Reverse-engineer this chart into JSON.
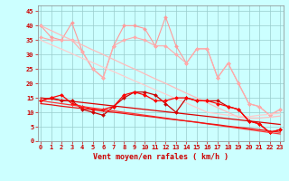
{
  "x": [
    0,
    1,
    2,
    3,
    4,
    5,
    6,
    7,
    8,
    9,
    10,
    11,
    12,
    13,
    14,
    15,
    16,
    17,
    18,
    19,
    20,
    21,
    22,
    23
  ],
  "series": [
    {
      "label": "pink_wiggly1",
      "color": "#ff9999",
      "lw": 0.8,
      "marker": "D",
      "markersize": 2.0,
      "y": [
        40,
        36,
        35,
        41,
        31,
        25,
        22,
        33,
        40,
        40,
        39,
        33,
        43,
        33,
        27,
        32,
        32,
        22,
        27,
        20,
        13,
        12,
        9,
        11
      ]
    },
    {
      "label": "pink_wiggly2",
      "color": "#ffaaaa",
      "lw": 0.8,
      "marker": "D",
      "markersize": 2.0,
      "y": [
        36,
        35,
        35,
        35,
        31,
        25,
        22,
        33,
        35,
        36,
        35,
        33,
        33,
        30,
        27,
        32,
        32,
        22,
        27,
        20,
        13,
        12,
        9,
        11
      ]
    },
    {
      "label": "pink_trend1",
      "color": "#ffbbbb",
      "lw": 0.9,
      "marker": null,
      "markersize": 0,
      "y": [
        40,
        38.3,
        36.6,
        35.0,
        33.3,
        31.6,
        30.0,
        28.3,
        26.6,
        25.0,
        23.3,
        21.6,
        20.0,
        18.3,
        16.6,
        15.0,
        13.3,
        11.6,
        10.0,
        8.3,
        8.0,
        8.0,
        8.3,
        8.7
      ]
    },
    {
      "label": "pink_trend2",
      "color": "#ffcccc",
      "lw": 0.9,
      "marker": null,
      "markersize": 0,
      "y": [
        35,
        33.4,
        31.9,
        30.3,
        28.7,
        27.2,
        25.6,
        24.1,
        22.5,
        20.9,
        19.4,
        17.8,
        16.3,
        14.7,
        13.2,
        11.6,
        10.0,
        9.5,
        9.0,
        8.7,
        8.5,
        9.0,
        9.3,
        9.7
      ]
    },
    {
      "label": "red_wiggly1",
      "color": "#cc0000",
      "lw": 0.9,
      "marker": "D",
      "markersize": 2.0,
      "y": [
        14,
        15,
        14,
        14,
        11,
        10,
        9,
        12,
        15,
        17,
        17,
        16,
        13,
        10,
        15,
        14,
        14,
        14,
        12,
        11,
        7,
        6,
        3,
        4
      ]
    },
    {
      "label": "red_wiggly2",
      "color": "#ff0000",
      "lw": 0.9,
      "marker": "D",
      "markersize": 2.0,
      "y": [
        14,
        15,
        16,
        13,
        12,
        11,
        11,
        12,
        16,
        17,
        16,
        14,
        14,
        15,
        15,
        14,
        14,
        13,
        12,
        11,
        7,
        6,
        3,
        4
      ]
    },
    {
      "label": "red_trend1",
      "color": "#dd0000",
      "lw": 0.9,
      "marker": null,
      "markersize": 0,
      "y": [
        15,
        14.6,
        14.2,
        13.8,
        13.4,
        13.0,
        12.6,
        12.2,
        11.8,
        11.4,
        11.0,
        10.6,
        10.2,
        9.8,
        9.4,
        9.0,
        8.6,
        8.2,
        7.8,
        7.4,
        7.0,
        6.6,
        6.2,
        5.8
      ]
    },
    {
      "label": "red_trend2",
      "color": "#ff3333",
      "lw": 0.9,
      "marker": null,
      "markersize": 0,
      "y": [
        14,
        13.5,
        13.0,
        12.5,
        12.0,
        11.5,
        11.0,
        10.5,
        10.0,
        9.5,
        9.0,
        8.5,
        8.0,
        7.5,
        7.0,
        6.5,
        6.0,
        5.5,
        5.0,
        4.5,
        4.0,
        3.5,
        3.0,
        2.5
      ]
    },
    {
      "label": "red_trend3",
      "color": "#ee1111",
      "lw": 0.9,
      "marker": null,
      "markersize": 0,
      "y": [
        13,
        12.6,
        12.1,
        11.7,
        11.3,
        10.9,
        10.4,
        10.0,
        9.6,
        9.1,
        8.7,
        8.3,
        7.8,
        7.4,
        7.0,
        6.6,
        6.1,
        5.7,
        5.2,
        4.8,
        4.4,
        4.0,
        3.5,
        3.1
      ]
    }
  ],
  "xlim": [
    -0.3,
    23.3
  ],
  "ylim": [
    0,
    47
  ],
  "yticks": [
    0,
    5,
    10,
    15,
    20,
    25,
    30,
    35,
    40,
    45
  ],
  "xticks": [
    0,
    1,
    2,
    3,
    4,
    5,
    6,
    7,
    8,
    9,
    10,
    11,
    12,
    13,
    14,
    15,
    16,
    17,
    18,
    19,
    20,
    21,
    22,
    23
  ],
  "xlabel": "Vent moyen/en rafales ( km/h )",
  "background_color": "#ccffff",
  "grid_color": "#99cccc",
  "tick_color": "#cc0000",
  "label_color": "#cc0000",
  "tick_fontsize": 5.0,
  "label_fontsize": 6.0
}
